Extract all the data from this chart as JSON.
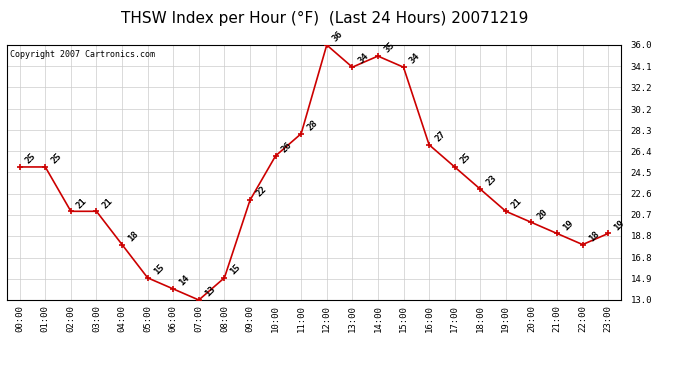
{
  "title": "THSW Index per Hour (°F)  (Last 24 Hours) 20071219",
  "copyright": "Copyright 2007 Cartronics.com",
  "hours": [
    "00:00",
    "01:00",
    "02:00",
    "03:00",
    "04:00",
    "05:00",
    "06:00",
    "07:00",
    "08:00",
    "09:00",
    "10:00",
    "11:00",
    "12:00",
    "13:00",
    "14:00",
    "15:00",
    "16:00",
    "17:00",
    "18:00",
    "19:00",
    "20:00",
    "21:00",
    "22:00",
    "23:00"
  ],
  "values": [
    25,
    25,
    21,
    21,
    18,
    15,
    14,
    13,
    15,
    22,
    26,
    28,
    36,
    34,
    35,
    34,
    27,
    25,
    23,
    21,
    20,
    19,
    18,
    19
  ],
  "ylim_min": 13.0,
  "ylim_max": 36.0,
  "yticks": [
    13.0,
    14.9,
    16.8,
    18.8,
    20.7,
    22.6,
    24.5,
    26.4,
    28.3,
    30.2,
    32.2,
    34.1,
    36.0
  ],
  "line_color": "#cc0000",
  "marker_color": "#cc0000",
  "bg_color": "#ffffff",
  "grid_color": "#cccccc",
  "title_fontsize": 11,
  "label_fontsize": 6.5,
  "annotation_fontsize": 6.5,
  "copyright_fontsize": 6
}
